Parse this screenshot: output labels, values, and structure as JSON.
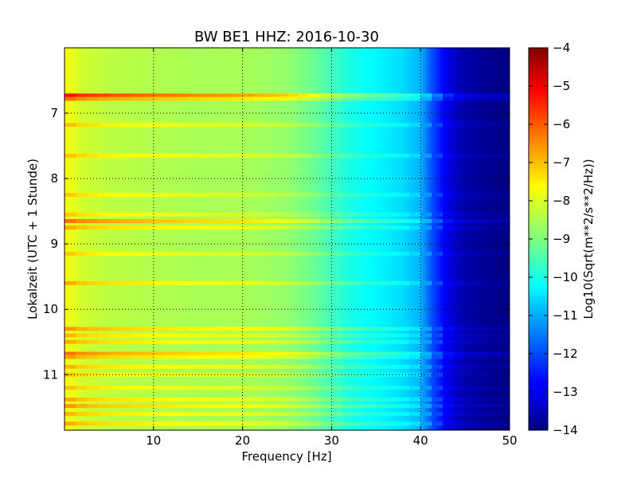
{
  "chart_data": {
    "type": "heatmap",
    "title": "BW BE1 HHZ: 2016-10-30",
    "xlabel": "Frequency [Hz]",
    "ylabel": "Lokalzeit (UTC + 1 Stunde)",
    "xlim": [
      0,
      50
    ],
    "ylim": [
      11.85,
      6.0
    ],
    "x_ticks": [
      "10",
      "20",
      "30",
      "40",
      "50"
    ],
    "x_tick_values": [
      10,
      20,
      30,
      40,
      50
    ],
    "y_ticks": [
      "7",
      "8",
      "9",
      "10",
      "11"
    ],
    "y_tick_values": [
      7,
      8,
      9,
      10,
      11
    ],
    "grid": true,
    "colormap": "jet",
    "colorbar": {
      "label": "Log10(Sqrt(m**2/s**2/Hz))",
      "range": [
        -14,
        -4
      ],
      "ticks": [
        "−4",
        "−5",
        "−6",
        "−7",
        "−8",
        "−9",
        "−10",
        "−11",
        "−12",
        "−13",
        "−14"
      ],
      "tick_values": [
        -4,
        -5,
        -6,
        -7,
        -8,
        -9,
        -10,
        -11,
        -12,
        -13,
        -14
      ]
    },
    "spectrum_profile": {
      "frequency": [
        0,
        1,
        2,
        5,
        10,
        15,
        20,
        25,
        28,
        30,
        32,
        35,
        38,
        40,
        41,
        42,
        43,
        45,
        50
      ],
      "level": [
        -7.8,
        -8.0,
        -8.2,
        -8.4,
        -8.5,
        -8.6,
        -8.6,
        -8.8,
        -9.2,
        -9.6,
        -10.0,
        -10.3,
        -10.6,
        -11.0,
        -11.8,
        -12.4,
        -13.0,
        -13.6,
        -14.0
      ]
    },
    "events": [
      {
        "time": 6.73,
        "level": 2.6
      },
      {
        "time": 6.78,
        "level": 1.6
      },
      {
        "time": 7.18,
        "level": 0.8
      },
      {
        "time": 7.65,
        "level": 0.8
      },
      {
        "time": 8.25,
        "level": 0.7
      },
      {
        "time": 8.55,
        "level": 0.7
      },
      {
        "time": 8.65,
        "level": 1.6
      },
      {
        "time": 8.75,
        "level": 1.0
      },
      {
        "time": 9.15,
        "level": 0.7
      },
      {
        "time": 9.6,
        "level": 1.0
      },
      {
        "time": 10.3,
        "level": 1.2
      },
      {
        "time": 10.4,
        "level": 0.9
      },
      {
        "time": 10.5,
        "level": 1.0
      },
      {
        "time": 10.68,
        "level": 1.6
      },
      {
        "time": 10.73,
        "level": 1.1
      },
      {
        "time": 10.88,
        "level": 0.9
      },
      {
        "time": 11.0,
        "level": 0.8
      },
      {
        "time": 11.2,
        "level": 0.8
      },
      {
        "time": 11.38,
        "level": 1.0
      },
      {
        "time": 11.48,
        "level": 1.2
      },
      {
        "time": 11.6,
        "level": 0.9
      },
      {
        "time": 11.75,
        "level": 1.0
      }
    ]
  }
}
